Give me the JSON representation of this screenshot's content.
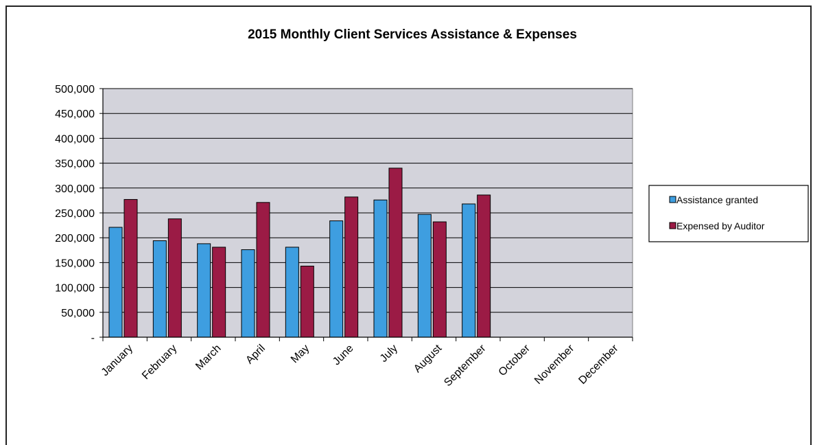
{
  "chart_data": {
    "type": "bar",
    "title": "2015 Monthly Client Services Assistance & Expenses",
    "xlabel": "",
    "ylabel": "",
    "categories": [
      "January",
      "February",
      "March",
      "April",
      "May",
      "June",
      "July",
      "August",
      "September",
      "October",
      "November",
      "December"
    ],
    "series": [
      {
        "name": "Assistance granted",
        "color": "#3e9ee0",
        "values": [
          221000,
          194000,
          188000,
          176000,
          181000,
          234000,
          276000,
          247000,
          268000,
          null,
          null,
          null
        ]
      },
      {
        "name": "Expensed by Auditor",
        "color": "#9b1b45",
        "values": [
          277000,
          238000,
          181000,
          271000,
          143000,
          282000,
          340000,
          232000,
          286000,
          null,
          null,
          null
        ]
      }
    ],
    "ylim": [
      0,
      500000
    ],
    "yticks": [
      0,
      50000,
      100000,
      150000,
      200000,
      250000,
      300000,
      350000,
      400000,
      450000,
      500000
    ],
    "ytick_labels": [
      "-",
      "50,000",
      "100,000",
      "150,000",
      "200,000",
      "250,000",
      "300,000",
      "350,000",
      "400,000",
      "450,000",
      "500,000"
    ],
    "grid": true,
    "plot_background": "#d3d3db",
    "legend_position": "right"
  }
}
